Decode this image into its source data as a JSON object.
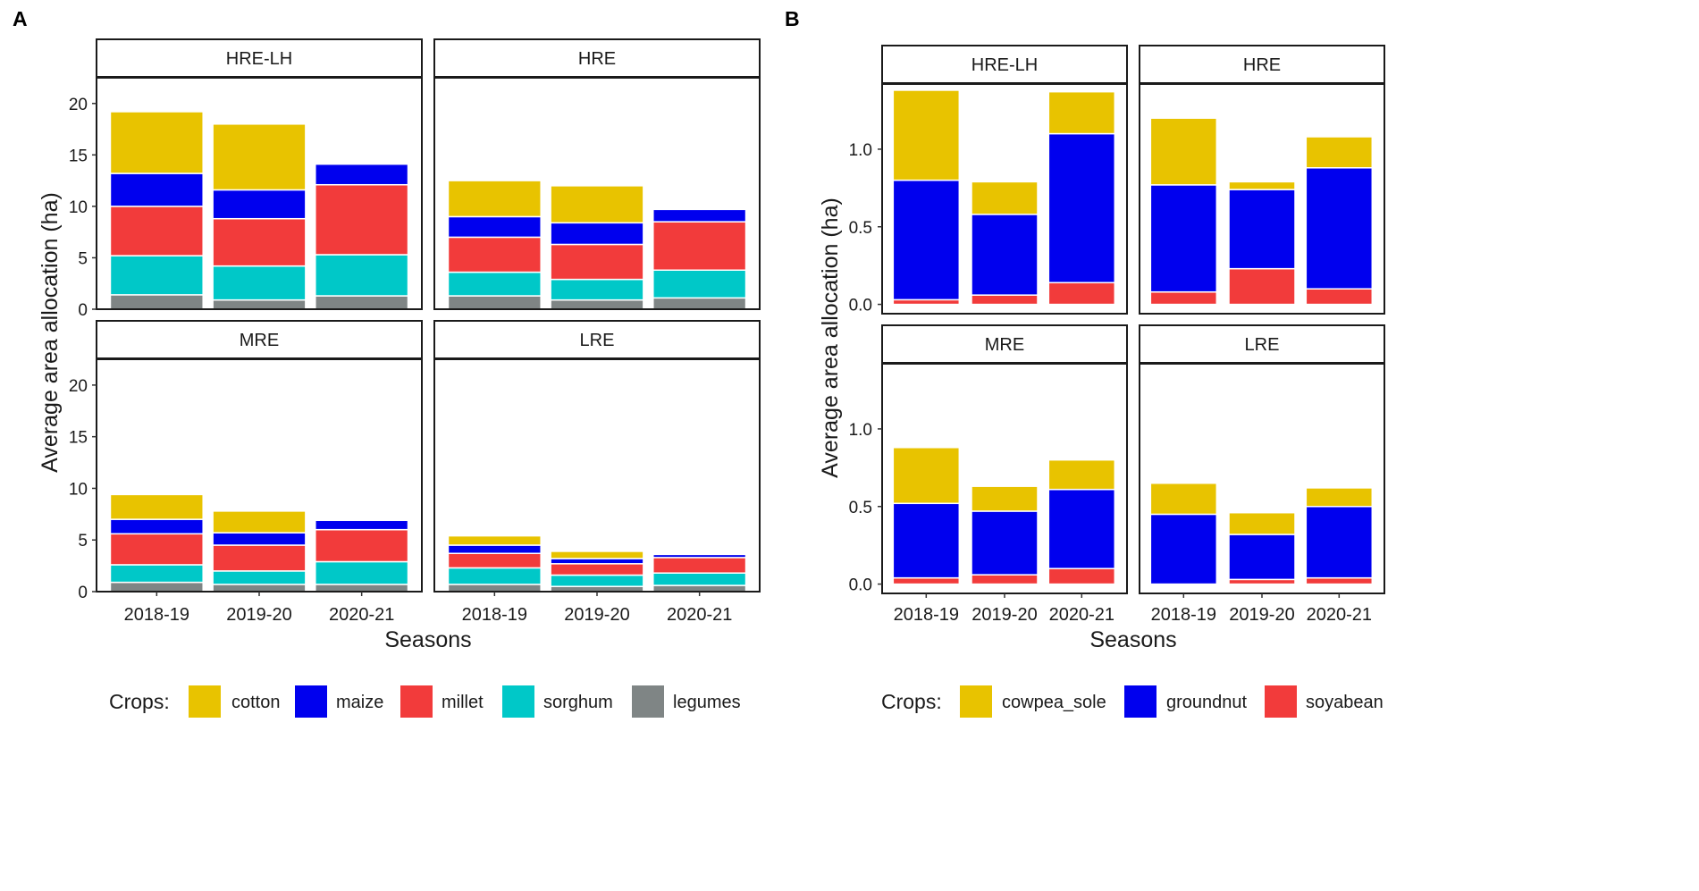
{
  "colors": {
    "cotton": "#E8C300",
    "maize": "#0000EE",
    "millet": "#F23B3B",
    "sorghum": "#00C8C8",
    "legumes": "#7F8585",
    "cowpea_sole": "#E8C300",
    "groundnut": "#0000EE",
    "soyabean": "#F23B3B"
  },
  "chart_data": [
    {
      "type": "bar",
      "stacked": true,
      "panel_label": "A",
      "xlabel": "Seasons",
      "ylabel": "Average area allocation (ha)",
      "ylim": [
        0,
        22.5
      ],
      "yticks": [
        0,
        5,
        10,
        15,
        20
      ],
      "ytick_labels": [
        "0",
        "5",
        "10",
        "15",
        "20"
      ],
      "categories": [
        "2018-19",
        "2019-20",
        "2020-21"
      ],
      "legend": {
        "title": "Crops:",
        "position": "bottom",
        "entries": [
          {
            "name": "cotton",
            "key": "cotton"
          },
          {
            "name": "maize",
            "key": "maize"
          },
          {
            "name": "millet",
            "key": "millet"
          },
          {
            "name": "sorghum",
            "key": "sorghum"
          },
          {
            "name": "legumes",
            "key": "legumes"
          }
        ]
      },
      "facets": [
        {
          "title": "HRE-LH",
          "series": [
            {
              "name": "legumes",
              "values": [
                1.4,
                0.9,
                1.3
              ]
            },
            {
              "name": "sorghum",
              "values": [
                3.8,
                3.3,
                4.0
              ]
            },
            {
              "name": "millet",
              "values": [
                4.8,
                4.6,
                6.8
              ]
            },
            {
              "name": "maize",
              "values": [
                3.2,
                2.8,
                2.0
              ]
            },
            {
              "name": "cotton",
              "values": [
                6.0,
                6.4,
                0
              ]
            }
          ]
        },
        {
          "title": "HRE",
          "series": [
            {
              "name": "legumes",
              "values": [
                1.3,
                0.9,
                1.1
              ]
            },
            {
              "name": "sorghum",
              "values": [
                2.3,
                2.0,
                2.7
              ]
            },
            {
              "name": "millet",
              "values": [
                3.4,
                3.4,
                4.7
              ]
            },
            {
              "name": "maize",
              "values": [
                2.0,
                2.1,
                1.2
              ]
            },
            {
              "name": "cotton",
              "values": [
                3.5,
                3.6,
                0
              ]
            }
          ]
        },
        {
          "title": "MRE",
          "series": [
            {
              "name": "legumes",
              "values": [
                0.9,
                0.7,
                0.7
              ]
            },
            {
              "name": "sorghum",
              "values": [
                1.7,
                1.3,
                2.2
              ]
            },
            {
              "name": "millet",
              "values": [
                3.0,
                2.5,
                3.1
              ]
            },
            {
              "name": "maize",
              "values": [
                1.4,
                1.2,
                0.9
              ]
            },
            {
              "name": "cotton",
              "values": [
                2.4,
                2.1,
                0
              ]
            }
          ]
        },
        {
          "title": "LRE",
          "series": [
            {
              "name": "legumes",
              "values": [
                0.7,
                0.5,
                0.6
              ]
            },
            {
              "name": "sorghum",
              "values": [
                1.6,
                1.1,
                1.2
              ]
            },
            {
              "name": "millet",
              "values": [
                1.4,
                1.1,
                1.5
              ]
            },
            {
              "name": "maize",
              "values": [
                0.8,
                0.5,
                0.3
              ]
            },
            {
              "name": "cotton",
              "values": [
                0.9,
                0.7,
                0
              ]
            }
          ]
        }
      ]
    },
    {
      "type": "bar",
      "stacked": true,
      "panel_label": "B",
      "xlabel": "Seasons",
      "ylabel": "Average area allocation (ha)",
      "ylim": [
        -0.06,
        1.42
      ],
      "yticks": [
        0,
        0.5,
        1.0
      ],
      "ytick_labels": [
        "0.0",
        "0.5",
        "1.0"
      ],
      "categories": [
        "2018-19",
        "2019-20",
        "2020-21"
      ],
      "legend": {
        "title": "Crops:",
        "position": "bottom",
        "entries": [
          {
            "name": "cowpea_sole",
            "key": "cowpea_sole"
          },
          {
            "name": "groundnut",
            "key": "groundnut"
          },
          {
            "name": "soyabean",
            "key": "soyabean"
          }
        ]
      },
      "facets": [
        {
          "title": "HRE-LH",
          "series": [
            {
              "name": "soyabean",
              "values": [
                0.03,
                0.06,
                0.14
              ]
            },
            {
              "name": "groundnut",
              "values": [
                0.77,
                0.52,
                0.96
              ]
            },
            {
              "name": "cowpea_sole",
              "values": [
                0.58,
                0.21,
                0.27
              ]
            }
          ]
        },
        {
          "title": "HRE",
          "series": [
            {
              "name": "soyabean",
              "values": [
                0.08,
                0.23,
                0.1
              ]
            },
            {
              "name": "groundnut",
              "values": [
                0.69,
                0.51,
                0.78
              ]
            },
            {
              "name": "cowpea_sole",
              "values": [
                0.43,
                0.05,
                0.2
              ]
            }
          ]
        },
        {
          "title": "MRE",
          "series": [
            {
              "name": "soyabean",
              "values": [
                0.04,
                0.06,
                0.1
              ]
            },
            {
              "name": "groundnut",
              "values": [
                0.48,
                0.41,
                0.51
              ]
            },
            {
              "name": "cowpea_sole",
              "values": [
                0.36,
                0.16,
                0.19
              ]
            }
          ]
        },
        {
          "title": "LRE",
          "series": [
            {
              "name": "soyabean",
              "values": [
                0.0,
                0.03,
                0.04
              ]
            },
            {
              "name": "groundnut",
              "values": [
                0.45,
                0.29,
                0.46
              ]
            },
            {
              "name": "cowpea_sole",
              "values": [
                0.2,
                0.14,
                0.12
              ]
            }
          ]
        }
      ]
    }
  ]
}
